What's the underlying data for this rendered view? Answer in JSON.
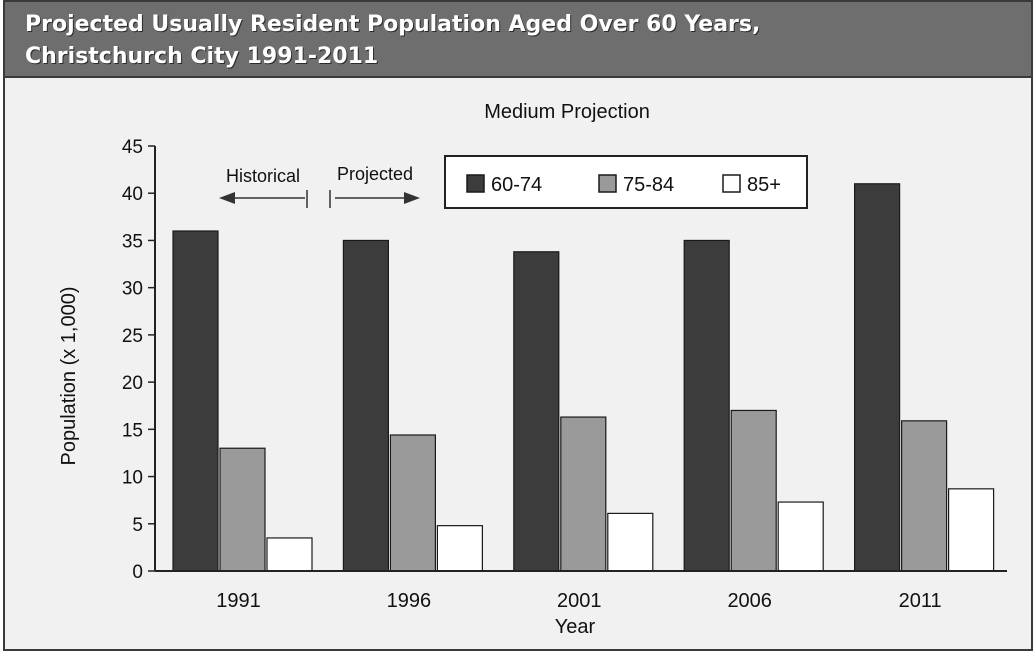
{
  "header": {
    "title_line1": "Projected Usually Resident Population Aged Over 60 Years,",
    "title_line2": "Christchurch City 1991-2011"
  },
  "chart_data": {
    "type": "bar",
    "title": "Medium Projection",
    "xlabel": "Year",
    "ylabel": "Population (x 1,000)",
    "categories": [
      "1991",
      "1996",
      "2001",
      "2006",
      "2011"
    ],
    "ylim": [
      0,
      45
    ],
    "yticks": [
      0,
      5,
      10,
      15,
      20,
      25,
      30,
      35,
      40,
      45
    ],
    "series": [
      {
        "name": "60-74",
        "values": [
          36,
          35,
          33.8,
          35,
          41
        ],
        "color": "#3c3c3c"
      },
      {
        "name": "75-84",
        "values": [
          13,
          14.4,
          16.3,
          17,
          15.9
        ],
        "color": "#9a9a9a"
      },
      {
        "name": "85+",
        "values": [
          3.5,
          4.8,
          6.1,
          7.3,
          8.7
        ],
        "color": "#ffffff"
      }
    ],
    "annotations": {
      "historical": "Historical",
      "projected": "Projected"
    },
    "legend_position": "top-center",
    "grid": false
  }
}
